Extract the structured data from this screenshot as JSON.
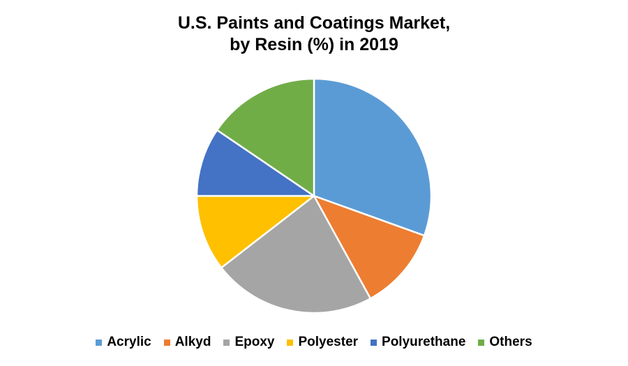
{
  "chart_data": {
    "type": "pie",
    "title": "U.S. Paints and Coatings Market,",
    "subtitle": "by Resin (%) in 2019",
    "categories": [
      "Acrylic",
      "Alkyd",
      "Epoxy",
      "Polyester",
      "Polyurethane",
      "Others"
    ],
    "values": [
      30.5,
      11.5,
      22.5,
      10.5,
      9.5,
      15.5
    ],
    "colors": [
      "#5b9bd5",
      "#ed7d31",
      "#a5a5a5",
      "#ffc000",
      "#4472c4",
      "#70ad47"
    ],
    "legend_position": "bottom",
    "start_angle": "top, clockwise"
  }
}
